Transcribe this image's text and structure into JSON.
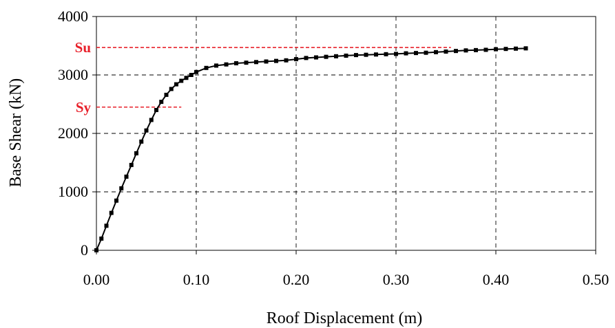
{
  "chart_data": {
    "type": "line",
    "title": "",
    "xlabel": "Roof Displacement (m)",
    "ylabel": "Base Shear (kN)",
    "xlim": [
      0,
      0.5
    ],
    "ylim": [
      0,
      4000
    ],
    "x_ticks": [
      0,
      0.1,
      0.2,
      0.3,
      0.4,
      0.5
    ],
    "x_tick_labels": [
      "0.00",
      "0.10",
      "0.20",
      "0.30",
      "0.40",
      "0.50"
    ],
    "y_ticks": [
      0,
      1000,
      2000,
      3000,
      4000
    ],
    "y_tick_labels": [
      "0",
      "1000",
      "2000",
      "3000",
      "4000"
    ],
    "grid": true,
    "legend": false,
    "series": [
      {
        "color": "#000000",
        "marker": "square",
        "x": [
          0.0,
          0.005,
          0.01,
          0.015,
          0.02,
          0.025,
          0.03,
          0.035,
          0.04,
          0.045,
          0.05,
          0.055,
          0.06,
          0.065,
          0.07,
          0.075,
          0.08,
          0.085,
          0.09,
          0.095,
          0.1,
          0.11,
          0.12,
          0.13,
          0.14,
          0.15,
          0.16,
          0.17,
          0.18,
          0.19,
          0.2,
          0.21,
          0.22,
          0.23,
          0.24,
          0.25,
          0.26,
          0.27,
          0.28,
          0.29,
          0.3,
          0.31,
          0.32,
          0.33,
          0.34,
          0.35,
          0.36,
          0.37,
          0.38,
          0.39,
          0.4,
          0.41,
          0.42,
          0.43
        ],
        "y": [
          0,
          200,
          420,
          640,
          850,
          1060,
          1260,
          1460,
          1660,
          1860,
          2050,
          2230,
          2400,
          2540,
          2660,
          2760,
          2840,
          2900,
          2950,
          3000,
          3050,
          3120,
          3160,
          3180,
          3200,
          3210,
          3220,
          3230,
          3240,
          3250,
          3270,
          3290,
          3300,
          3310,
          3320,
          3330,
          3340,
          3345,
          3350,
          3355,
          3360,
          3370,
          3375,
          3380,
          3390,
          3400,
          3410,
          3420,
          3425,
          3430,
          3440,
          3445,
          3450,
          3455
        ]
      }
    ],
    "annotations": [
      {
        "label": "Su",
        "y": 3470,
        "x_end": 0.355,
        "color": "#e8202a"
      },
      {
        "label": "Sy",
        "y": 2450,
        "x_end": 0.085,
        "color": "#e8202a"
      }
    ]
  }
}
